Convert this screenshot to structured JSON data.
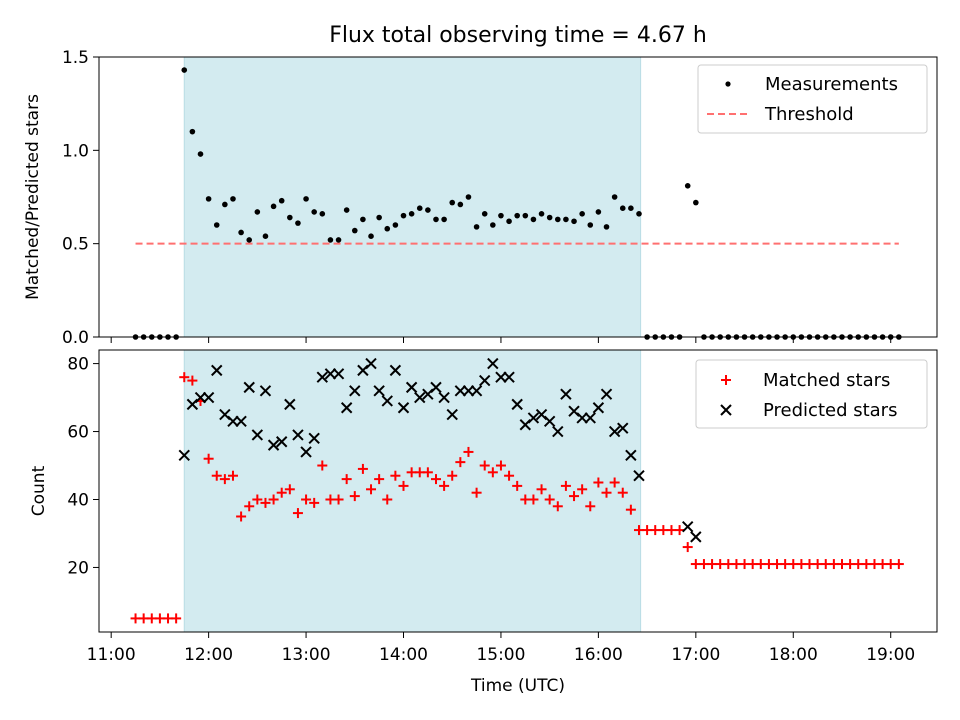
{
  "title": "Flux total observing time = 4.67 h",
  "chart_data": [
    {
      "type": "scatter",
      "ylabel": "Matched/Predicted stars",
      "xlabel": "",
      "ylim": [
        0,
        1.5
      ],
      "yticks": [
        "0.0",
        "0.5",
        "1.0",
        "1.5"
      ],
      "shaded_interval": [
        "11:45",
        "16:26"
      ],
      "shade_color": "#d3ebf0",
      "legend_position": "upper right",
      "series": [
        {
          "name": "Measurements",
          "marker": "dot",
          "color": "#000000",
          "x": [
            "11:15",
            "11:20",
            "11:25",
            "11:30",
            "11:35",
            "11:40",
            "11:45",
            "11:50",
            "11:55",
            "12:00",
            "12:05",
            "12:10",
            "12:15",
            "12:20",
            "12:25",
            "12:30",
            "12:35",
            "12:40",
            "12:45",
            "12:50",
            "12:55",
            "13:00",
            "13:05",
            "13:10",
            "13:15",
            "13:20",
            "13:25",
            "13:30",
            "13:35",
            "13:40",
            "13:45",
            "13:50",
            "13:55",
            "14:00",
            "14:05",
            "14:10",
            "14:15",
            "14:20",
            "14:25",
            "14:30",
            "14:35",
            "14:40",
            "14:45",
            "14:50",
            "14:55",
            "15:00",
            "15:05",
            "15:10",
            "15:15",
            "15:20",
            "15:25",
            "15:30",
            "15:35",
            "15:40",
            "15:45",
            "15:50",
            "15:55",
            "16:00",
            "16:05",
            "16:10",
            "16:15",
            "16:20",
            "16:25",
            "16:30",
            "16:35",
            "16:40",
            "16:45",
            "16:50",
            "16:55",
            "17:00",
            "17:05",
            "17:10",
            "17:15",
            "17:20",
            "17:25",
            "17:30",
            "17:35",
            "17:40",
            "17:45",
            "17:50",
            "17:55",
            "18:00",
            "18:05",
            "18:10",
            "18:15",
            "18:20",
            "18:25",
            "18:30",
            "18:35",
            "18:40",
            "18:45",
            "18:50",
            "18:55",
            "19:00",
            "19:05"
          ],
          "y": [
            0,
            0,
            0,
            0,
            0,
            0,
            1.43,
            1.1,
            0.98,
            0.74,
            0.6,
            0.71,
            0.74,
            0.56,
            0.52,
            0.67,
            0.54,
            0.7,
            0.73,
            0.64,
            0.61,
            0.74,
            0.67,
            0.66,
            0.52,
            0.52,
            0.68,
            0.57,
            0.63,
            0.54,
            0.64,
            0.58,
            0.6,
            0.65,
            0.66,
            0.69,
            0.68,
            0.63,
            0.63,
            0.72,
            0.71,
            0.75,
            0.59,
            0.66,
            0.6,
            0.65,
            0.62,
            0.65,
            0.65,
            0.63,
            0.66,
            0.64,
            0.63,
            0.63,
            0.62,
            0.66,
            0.6,
            0.67,
            0.59,
            0.75,
            0.69,
            0.69,
            0.66,
            0,
            0,
            0,
            0,
            0,
            0.81,
            0.72,
            0,
            0,
            0,
            0,
            0,
            0,
            0,
            0,
            0,
            0,
            0,
            0,
            0,
            0,
            0,
            0,
            0,
            0,
            0,
            0,
            0,
            0,
            0,
            0,
            0
          ]
        },
        {
          "name": "Threshold",
          "style": "dashed",
          "color": "#ff7070",
          "x": [
            "11:15",
            "19:05"
          ],
          "y": [
            0.5,
            0.5
          ]
        }
      ]
    },
    {
      "type": "scatter",
      "ylabel": "Count",
      "xlabel": "Time (UTC)",
      "ylim": [
        1,
        84
      ],
      "yticks": [
        "20",
        "40",
        "60",
        "80"
      ],
      "xticks": [
        "11:00",
        "12:00",
        "13:00",
        "14:00",
        "15:00",
        "16:00",
        "17:00",
        "18:00",
        "19:00"
      ],
      "shaded_interval": [
        "11:45",
        "16:26"
      ],
      "legend_position": "upper right",
      "series": [
        {
          "name": "Matched stars",
          "marker": "plus",
          "color": "#ff0000",
          "x": [
            "11:15",
            "11:20",
            "11:25",
            "11:30",
            "11:35",
            "11:40",
            "11:45",
            "11:50",
            "11:55",
            "12:00",
            "12:05",
            "12:10",
            "12:15",
            "12:20",
            "12:25",
            "12:30",
            "12:35",
            "12:40",
            "12:45",
            "12:50",
            "12:55",
            "13:00",
            "13:05",
            "13:10",
            "13:15",
            "13:20",
            "13:25",
            "13:30",
            "13:35",
            "13:40",
            "13:45",
            "13:50",
            "13:55",
            "14:00",
            "14:05",
            "14:10",
            "14:15",
            "14:20",
            "14:25",
            "14:30",
            "14:35",
            "14:40",
            "14:45",
            "14:50",
            "14:55",
            "15:00",
            "15:05",
            "15:10",
            "15:15",
            "15:20",
            "15:25",
            "15:30",
            "15:35",
            "15:40",
            "15:45",
            "15:50",
            "15:55",
            "16:00",
            "16:05",
            "16:10",
            "16:15",
            "16:20",
            "16:25",
            "16:30",
            "16:35",
            "16:40",
            "16:45",
            "16:50",
            "16:55",
            "17:00",
            "17:05",
            "17:10",
            "17:15",
            "17:20",
            "17:25",
            "17:30",
            "17:35",
            "17:40",
            "17:45",
            "17:50",
            "17:55",
            "18:00",
            "18:05",
            "18:10",
            "18:15",
            "18:20",
            "18:25",
            "18:30",
            "18:35",
            "18:40",
            "18:45",
            "18:50",
            "18:55",
            "19:00",
            "19:05"
          ],
          "y": [
            5,
            5,
            5,
            5,
            5,
            5,
            76,
            75,
            69,
            52,
            47,
            46,
            47,
            35,
            38,
            40,
            39,
            40,
            42,
            43,
            36,
            40,
            39,
            50,
            40,
            40,
            46,
            41,
            49,
            43,
            46,
            40,
            47,
            44,
            48,
            48,
            48,
            46,
            44,
            47,
            51,
            54,
            42,
            50,
            48,
            50,
            47,
            44,
            40,
            40,
            43,
            40,
            38,
            44,
            41,
            43,
            38,
            45,
            42,
            45,
            42,
            37,
            31,
            31,
            31,
            31,
            31,
            31,
            26,
            21,
            21,
            21,
            21,
            21,
            21,
            21,
            21,
            21,
            21,
            21,
            21,
            21,
            21,
            21,
            21,
            21,
            21,
            21,
            21,
            21,
            21,
            21,
            21,
            21,
            21
          ]
        },
        {
          "name": "Predicted stars",
          "marker": "x",
          "color": "#000000",
          "x": [
            "11:45",
            "11:50",
            "11:55",
            "12:00",
            "12:05",
            "12:10",
            "12:15",
            "12:20",
            "12:25",
            "12:30",
            "12:35",
            "12:40",
            "12:45",
            "12:50",
            "12:55",
            "13:00",
            "13:05",
            "13:10",
            "13:15",
            "13:20",
            "13:25",
            "13:30",
            "13:35",
            "13:40",
            "13:45",
            "13:50",
            "13:55",
            "14:00",
            "14:05",
            "14:10",
            "14:15",
            "14:20",
            "14:25",
            "14:30",
            "14:35",
            "14:40",
            "14:45",
            "14:50",
            "14:55",
            "15:00",
            "15:05",
            "15:10",
            "15:15",
            "15:20",
            "15:25",
            "15:30",
            "15:35",
            "15:40",
            "15:45",
            "15:50",
            "15:55",
            "16:00",
            "16:05",
            "16:10",
            "16:15",
            "16:20",
            "16:25",
            "16:55",
            "17:00"
          ],
          "y": [
            53,
            68,
            70,
            70,
            78,
            65,
            63,
            63,
            73,
            59,
            72,
            56,
            57,
            68,
            59,
            54,
            58,
            76,
            77,
            77,
            67,
            72,
            78,
            80,
            72,
            69,
            78,
            67,
            73,
            70,
            71,
            73,
            70,
            65,
            72,
            72,
            72,
            75,
            80,
            76,
            76,
            68,
            62,
            64,
            65,
            63,
            60,
            71,
            66,
            64,
            64,
            67,
            71,
            60,
            61,
            53,
            47,
            32,
            29
          ]
        }
      ]
    }
  ]
}
